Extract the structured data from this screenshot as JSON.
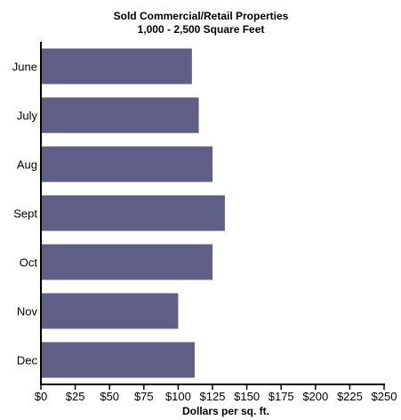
{
  "chart_data": {
    "type": "bar",
    "orientation": "horizontal",
    "title": "Sold Commercial/Retail Properties",
    "subtitle": "1,000 - 2,500 Square Feet",
    "categories": [
      "June",
      "July",
      "Aug",
      "Sept",
      "Oct",
      "Nov",
      "Dec"
    ],
    "values": [
      110,
      115,
      125,
      134,
      125,
      100,
      112
    ],
    "xlabel": "Dollars per sq. ft.",
    "ylabel": "",
    "xlim": [
      0,
      250
    ],
    "xticks": [
      "$0",
      "$25",
      "$50",
      "$75",
      "$100",
      "$125",
      "$150",
      "$175",
      "$200",
      "$225",
      "$250"
    ],
    "bar_color": "#5e5e86",
    "grid": false,
    "legend": "none"
  }
}
